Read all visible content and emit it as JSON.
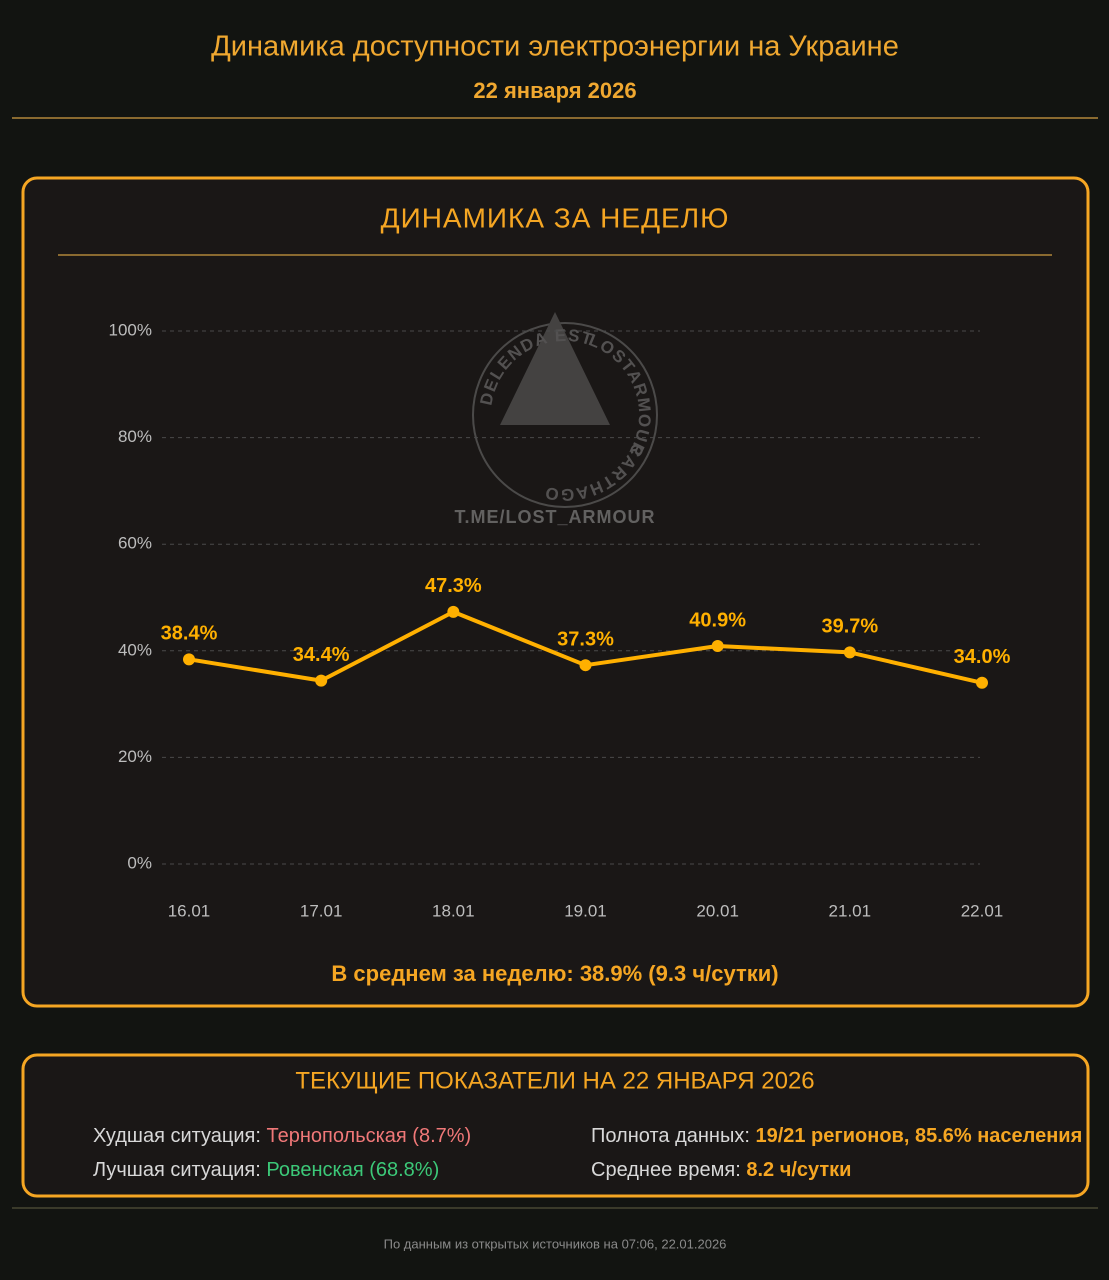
{
  "header": {
    "title": "Динамика доступности электроэнергии на Украине",
    "subtitle": "22 января 2026"
  },
  "chart_data": {
    "type": "line",
    "title": "ДИНАМИКА ЗА НЕДЕЛЮ",
    "categories": [
      "16.01",
      "17.01",
      "18.01",
      "19.01",
      "20.01",
      "21.01",
      "22.01"
    ],
    "values": [
      38.4,
      34.4,
      47.3,
      37.3,
      40.9,
      39.7,
      34.0
    ],
    "value_labels": [
      "38.4%",
      "34.4%",
      "47.3%",
      "37.3%",
      "40.9%",
      "39.7%",
      "34.0%"
    ],
    "color": "#ffb000",
    "ylim": [
      0,
      100
    ],
    "yticks": [
      {
        "value": 0,
        "label": "0%"
      },
      {
        "value": 20,
        "label": "20%"
      },
      {
        "value": 40,
        "label": "40%"
      },
      {
        "value": 60,
        "label": "60%"
      },
      {
        "value": 80,
        "label": "80%"
      },
      {
        "value": 100,
        "label": "100%"
      }
    ],
    "grid": true,
    "note": "В среднем за неделю: 38.9% (9.3 ч/сутки)"
  },
  "watermark": {
    "top": "LOSTARMOUR",
    "right": "CARTHAGO",
    "left": "DELENDA EST",
    "link": "T.ME/LOST_ARMOUR"
  },
  "current": {
    "title": "ТЕКУЩИЕ ПОКАЗАТЕЛИ НА 22 ЯНВАРЯ 2026",
    "worst": {
      "label": "Худшая ситуация:",
      "value": "Тернопольская (8.7%)"
    },
    "best": {
      "label": "Лучшая ситуация:",
      "value": "Ровенская (68.8%)"
    },
    "coverage": {
      "label": "Полнота данных:",
      "value": "19/21 регионов, 85.6% населения"
    },
    "average": {
      "label": "Среднее время:",
      "value": "8.2 ч/сутки"
    }
  },
  "footer": "По данным из открытых источников на 07:06, 22.01.2026"
}
